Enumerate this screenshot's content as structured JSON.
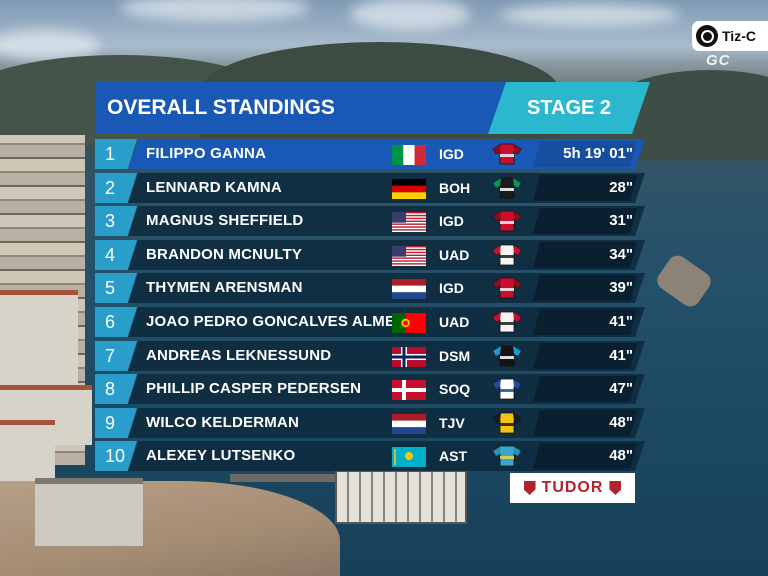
{
  "broadcast": {
    "logo_text": "Tiz-C",
    "gc_label": "GC"
  },
  "header": {
    "title": "OVERALL STANDINGS",
    "stage": "STAGE 2"
  },
  "standings": [
    {
      "pos": "1",
      "name": "FILIPPO GANNA",
      "flag": "flag-italy",
      "team": "IGD",
      "jersey": "ineos",
      "time": "5h 19' 01\""
    },
    {
      "pos": "2",
      "name": "LENNARD KAMNA",
      "flag": "flag-germany",
      "team": "BOH",
      "jersey": "bora",
      "time": "28\""
    },
    {
      "pos": "3",
      "name": "MAGNUS SHEFFIELD",
      "flag": "flag-usa",
      "team": "IGD",
      "jersey": "ineos",
      "time": "31\""
    },
    {
      "pos": "4",
      "name": "BRANDON MCNULTY",
      "flag": "flag-usa",
      "team": "UAD",
      "jersey": "uae",
      "time": "34\""
    },
    {
      "pos": "5",
      "name": "THYMEN ARENSMAN",
      "flag": "flag-netherlands",
      "team": "IGD",
      "jersey": "ineos",
      "time": "39\""
    },
    {
      "pos": "6",
      "name": "JOAO PEDRO GONCALVES ALMEIDA",
      "flag": "flag-portugal",
      "team": "UAD",
      "jersey": "uae",
      "time": "41\""
    },
    {
      "pos": "7",
      "name": "ANDREAS LEKNESSUND",
      "flag": "flag-norway",
      "team": "DSM",
      "jersey": "dsm",
      "time": "41\""
    },
    {
      "pos": "8",
      "name": "PHILLIP CASPER PEDERSEN",
      "flag": "flag-denmark",
      "team": "SOQ",
      "jersey": "soudal",
      "time": "47\""
    },
    {
      "pos": "9",
      "name": "WILCO KELDERMAN",
      "flag": "flag-netherlands",
      "team": "TJV",
      "jersey": "jumbo",
      "time": "48\""
    },
    {
      "pos": "10",
      "name": "ALEXEY LUTSENKO",
      "flag": "flag-kazakhstan",
      "team": "AST",
      "jersey": "astana",
      "time": "48\""
    }
  ],
  "sponsor": {
    "name": "TUDOR"
  },
  "colors": {
    "header_blue": "#1a58b5",
    "stage_teal": "#2bb7cd",
    "position_blue": "#2a9ecb",
    "row_dark": "#0e2a3e",
    "sponsor_red": "#b4212e"
  }
}
